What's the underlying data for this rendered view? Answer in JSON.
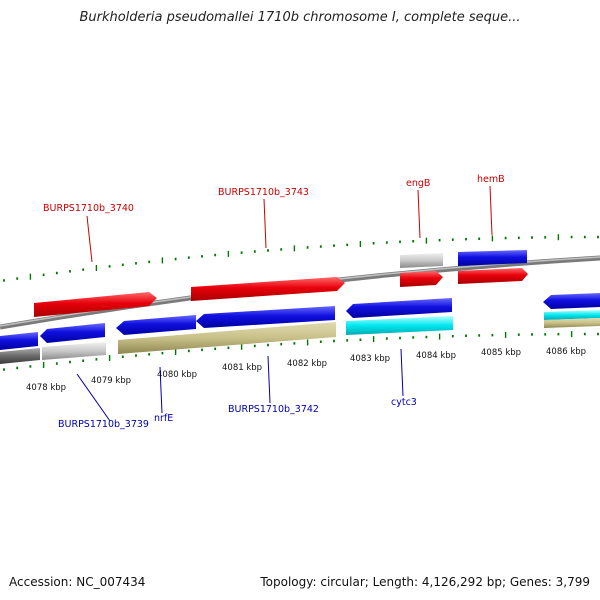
{
  "title": "Burkholderia pseudomallei 1710b chromosome I, complete seque...",
  "accession_text": "Accession: NC_007434",
  "topology_text": "Topology: circular; Length: 4,126,292 bp; Genes: 3,799",
  "colors": {
    "forward_gene": "#e8000b",
    "reverse_gene": "#1010e0",
    "cds_other": "#c8c088",
    "trna": "#00e8f0",
    "pseudo": "#c8c8c8",
    "forward_label": "#cc0000",
    "reverse_label": "#0000aa",
    "tick": "#007700",
    "backbone": "#888888"
  },
  "ticks": [
    {
      "label": "4078 kbp"
    },
    {
      "label": "4079 kbp"
    },
    {
      "label": "4080 kbp"
    },
    {
      "label": "4081 kbp"
    },
    {
      "label": "4082 kbp"
    },
    {
      "label": "4083 kbp"
    },
    {
      "label": "4084 kbp"
    },
    {
      "label": "4085 kbp"
    },
    {
      "label": "4086 kbp"
    }
  ],
  "gene_labels": {
    "top": [
      "BURPS1710b_3740",
      "BURPS1710b_3743",
      "engB",
      "hemB"
    ],
    "bottom": [
      "BURPS1710b_3739",
      "nrfE",
      "BURPS1710b_3742",
      "cytc3"
    ]
  }
}
